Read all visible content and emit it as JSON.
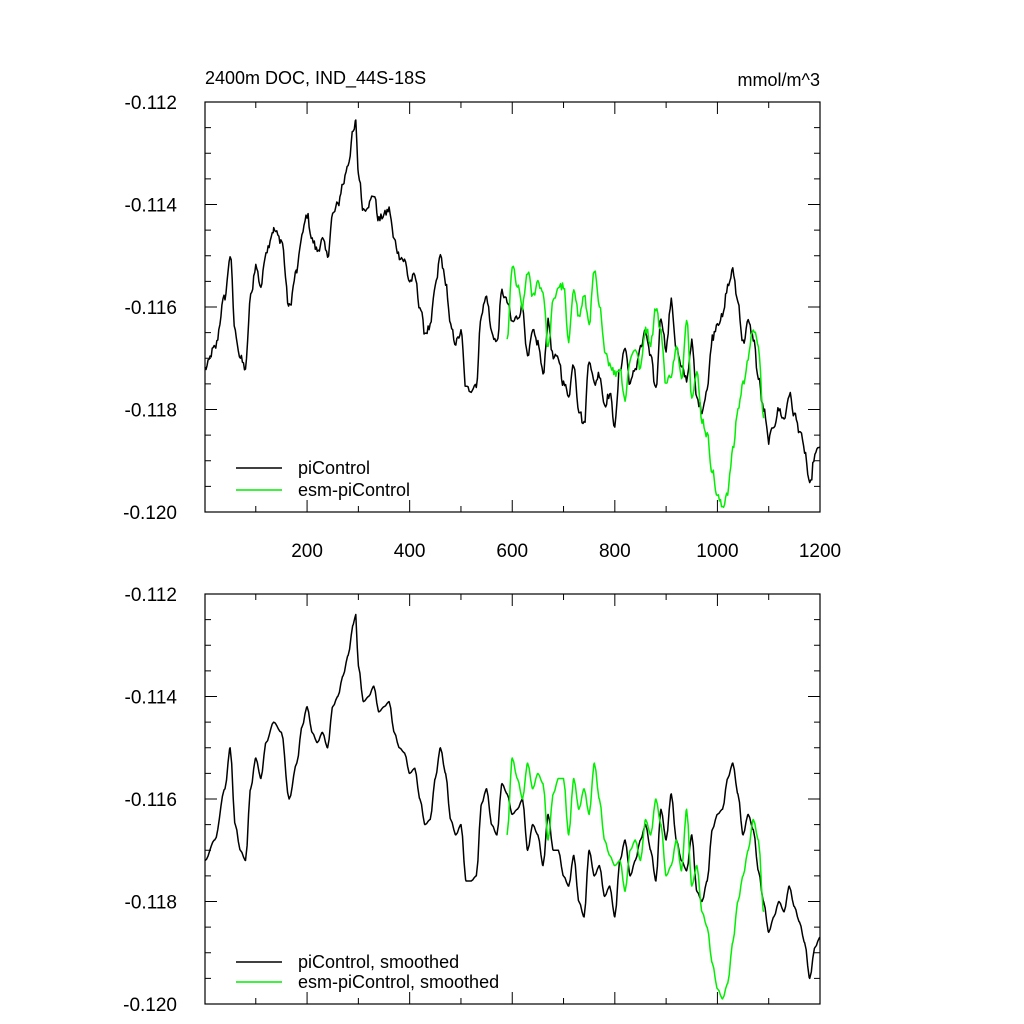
{
  "chart_data": [
    {
      "type": "line",
      "title_left": "2400m DOC, IND_44S-18S",
      "title_right": "mmol/m^3",
      "xlim": [
        1,
        1200
      ],
      "ylim": [
        -0.12,
        -0.112
      ],
      "xticks": [
        200,
        400,
        600,
        800,
        1000,
        1200
      ],
      "xtick_labels": [
        "200",
        "400",
        "600",
        "800",
        "1000",
        "1200"
      ],
      "show_x_tick_labels": true,
      "yticks": [
        -0.12,
        -0.118,
        -0.116,
        -0.114,
        -0.112
      ],
      "ytick_labels": [
        "-0.120",
        "-0.118",
        "-0.116",
        "-0.114",
        "-0.112"
      ],
      "grid": false,
      "legend_position": "bottom-left",
      "smoothed": false,
      "series": [
        {
          "name": "piControl",
          "color": "#000000",
          "x": [
            1,
            20,
            40,
            50,
            60,
            70,
            80,
            90,
            100,
            110,
            120,
            135,
            150,
            165,
            180,
            190,
            200,
            210,
            220,
            230,
            240,
            250,
            260,
            270,
            280,
            290,
            295,
            300,
            310,
            320,
            330,
            340,
            350,
            360,
            370,
            380,
            390,
            400,
            410,
            420,
            430,
            440,
            450,
            460,
            470,
            480,
            490,
            500,
            510,
            520,
            530,
            540,
            550,
            560,
            570,
            580,
            590,
            600,
            610,
            620,
            630,
            640,
            650,
            660,
            670,
            680,
            690,
            700,
            710,
            720,
            730,
            740,
            750,
            760,
            770,
            780,
            790,
            800,
            810,
            820,
            830,
            840,
            850,
            860,
            870,
            880,
            890,
            900,
            910,
            920,
            930,
            940,
            950,
            960,
            970,
            980,
            990,
            1000,
            1010,
            1020,
            1030,
            1040,
            1050,
            1060,
            1070,
            1080,
            1090,
            1100,
            1110,
            1120,
            1130,
            1140,
            1150,
            1160,
            1170,
            1180,
            1190,
            1200
          ],
          "y": [
            -0.1172,
            -0.1168,
            -0.1158,
            -0.115,
            -0.1165,
            -0.117,
            -0.1172,
            -0.1158,
            -0.1152,
            -0.1156,
            -0.1149,
            -0.1145,
            -0.1147,
            -0.116,
            -0.1153,
            -0.1146,
            -0.1142,
            -0.1147,
            -0.1149,
            -0.1147,
            -0.115,
            -0.1142,
            -0.114,
            -0.1136,
            -0.1132,
            -0.1126,
            -0.1124,
            -0.1134,
            -0.1141,
            -0.114,
            -0.1138,
            -0.1143,
            -0.1142,
            -0.1141,
            -0.1147,
            -0.115,
            -0.1151,
            -0.1155,
            -0.1154,
            -0.116,
            -0.1165,
            -0.1164,
            -0.1156,
            -0.115,
            -0.1155,
            -0.1164,
            -0.1167,
            -0.1165,
            -0.1176,
            -0.1176,
            -0.1175,
            -0.1161,
            -0.1158,
            -0.1165,
            -0.1167,
            -0.1157,
            -0.1159,
            -0.1163,
            -0.1162,
            -0.116,
            -0.117,
            -0.1165,
            -0.1167,
            -0.1173,
            -0.1163,
            -0.117,
            -0.117,
            -0.1175,
            -0.1177,
            -0.1171,
            -0.118,
            -0.1183,
            -0.117,
            -0.1175,
            -0.1173,
            -0.1179,
            -0.1177,
            -0.1183,
            -0.1172,
            -0.1168,
            -0.1175,
            -0.1172,
            -0.1168,
            -0.1165,
            -0.117,
            -0.1176,
            -0.1162,
            -0.1168,
            -0.1159,
            -0.1168,
            -0.1172,
            -0.1174,
            -0.1167,
            -0.1178,
            -0.118,
            -0.1176,
            -0.1166,
            -0.1163,
            -0.1162,
            -0.1156,
            -0.1153,
            -0.1159,
            -0.1167,
            -0.1163,
            -0.1166,
            -0.1174,
            -0.118,
            -0.1186,
            -0.1183,
            -0.118,
            -0.1182,
            -0.1177,
            -0.1181,
            -0.1184,
            -0.1188,
            -0.1195,
            -0.1189,
            -0.1187
          ]
        },
        {
          "name": "esm-piControl",
          "color": "#00ee00",
          "x": [
            590,
            600,
            610,
            620,
            630,
            640,
            650,
            660,
            670,
            680,
            690,
            700,
            710,
            720,
            730,
            740,
            750,
            760,
            770,
            780,
            790,
            800,
            810,
            820,
            830,
            840,
            850,
            860,
            870,
            880,
            890,
            900,
            910,
            920,
            930,
            940,
            950,
            960,
            970,
            980,
            990,
            1000,
            1010,
            1020,
            1030,
            1040,
            1050,
            1060,
            1070,
            1080,
            1090
          ],
          "y": [
            -0.1167,
            -0.1152,
            -0.1156,
            -0.116,
            -0.1153,
            -0.1158,
            -0.1155,
            -0.1157,
            -0.1168,
            -0.1159,
            -0.1156,
            -0.1156,
            -0.1167,
            -0.1156,
            -0.1162,
            -0.1158,
            -0.1163,
            -0.1153,
            -0.116,
            -0.1168,
            -0.1171,
            -0.1173,
            -0.1172,
            -0.1178,
            -0.117,
            -0.1168,
            -0.1172,
            -0.1164,
            -0.1167,
            -0.116,
            -0.1165,
            -0.1175,
            -0.1173,
            -0.1168,
            -0.1174,
            -0.1162,
            -0.1177,
            -0.1173,
            -0.1182,
            -0.1185,
            -0.1192,
            -0.1197,
            -0.1199,
            -0.1196,
            -0.1188,
            -0.118,
            -0.1175,
            -0.117,
            -0.1164,
            -0.1168,
            -0.1182
          ]
        }
      ]
    },
    {
      "type": "line",
      "title_left": "",
      "title_right": "",
      "xlim": [
        1,
        1200
      ],
      "ylim": [
        -0.12,
        -0.112
      ],
      "xticks": [
        200,
        400,
        600,
        800,
        1000,
        1200
      ],
      "xtick_labels": [],
      "show_x_tick_labels": false,
      "yticks": [
        -0.12,
        -0.118,
        -0.116,
        -0.114,
        -0.112
      ],
      "ytick_labels": [
        "-0.120",
        "-0.118",
        "-0.116",
        "-0.114",
        "-0.112"
      ],
      "grid": false,
      "legend_position": "bottom-left",
      "smoothed": true,
      "series": [
        {
          "name": "piControl, smoothed",
          "color": "#000000",
          "ref": 0
        },
        {
          "name": "esm-piControl, smoothed",
          "color": "#00ee00",
          "ref": 1
        }
      ]
    }
  ]
}
